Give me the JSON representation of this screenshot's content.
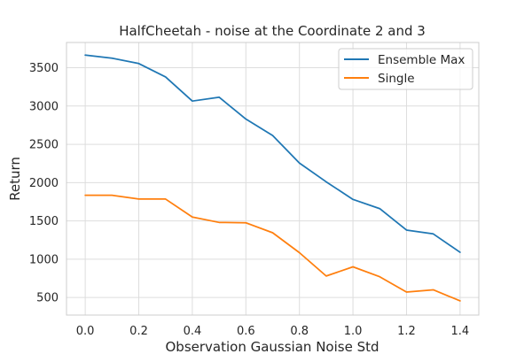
{
  "chart_data": {
    "type": "line",
    "title": "HalfCheetah - noise at the Coordinate 2 and 3",
    "xlabel": "Observation Gaussian Noise Std",
    "ylabel": "Return",
    "x": [
      0.0,
      0.1,
      0.2,
      0.3,
      0.4,
      0.5,
      0.6,
      0.7,
      0.8,
      0.9,
      1.0,
      1.1,
      1.2,
      1.3,
      1.4
    ],
    "xlim": [
      -0.07,
      1.47
    ],
    "ylim": [
      270,
      3830
    ],
    "xticks": [
      "0.0",
      "0.2",
      "0.4",
      "0.6",
      "0.8",
      "1.0",
      "1.2",
      "1.4"
    ],
    "yticks": [
      "500",
      "1000",
      "1500",
      "2000",
      "2500",
      "3000",
      "3500"
    ],
    "grid": true,
    "legend_position": "top-right",
    "series": [
      {
        "name": "Ensemble Max",
        "color": "#1f77b4",
        "values": [
          3665,
          3625,
          3555,
          3380,
          3065,
          3115,
          2830,
          2615,
          2255,
          2010,
          1780,
          1660,
          1380,
          1330,
          1090
        ]
      },
      {
        "name": "Single",
        "color": "#ff7f0e",
        "values": [
          1835,
          1835,
          1785,
          1785,
          1550,
          1480,
          1475,
          1345,
          1085,
          780,
          900,
          770,
          570,
          600,
          455
        ]
      }
    ]
  }
}
